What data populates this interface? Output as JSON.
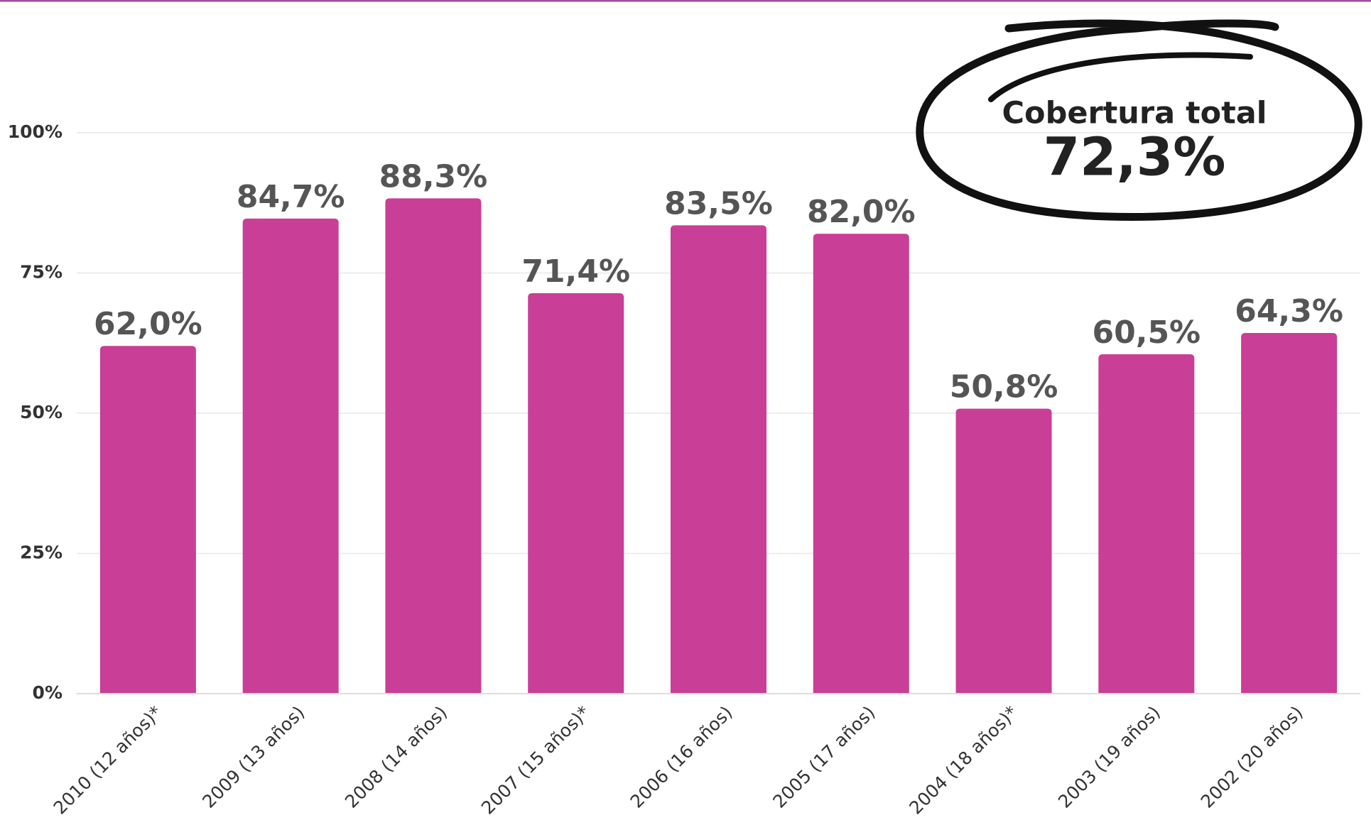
{
  "chart_data": {
    "type": "bar",
    "categories": [
      "2010 (12 años)*",
      "2009 (13 años)",
      "2008 (14 años)",
      "2007 (15 años)*",
      "2006 (16 años)",
      "2005 (17 años)",
      "2004 (18 años)*",
      "2003 (19 años)",
      "2002 (20 años)"
    ],
    "values": [
      62.0,
      84.7,
      88.3,
      71.4,
      83.5,
      82.0,
      50.8,
      60.5,
      64.3
    ],
    "value_labels": [
      "62,0%",
      "84,7%",
      "88,3%",
      "71,4%",
      "83,5%",
      "82,0%",
      "50,8%",
      "60,5%",
      "64,3%"
    ],
    "color": "#c93e96",
    "ylim": [
      0,
      100
    ],
    "yticks": [
      {
        "value": 0,
        "label": "0%"
      },
      {
        "value": 25,
        "label": "25%"
      },
      {
        "value": 50,
        "label": "50%"
      },
      {
        "value": 75,
        "label": "75%"
      },
      {
        "value": 100,
        "label": "100%"
      }
    ],
    "grid": true,
    "annotation": {
      "title": "Cobertura total",
      "value": "72,3%"
    }
  }
}
